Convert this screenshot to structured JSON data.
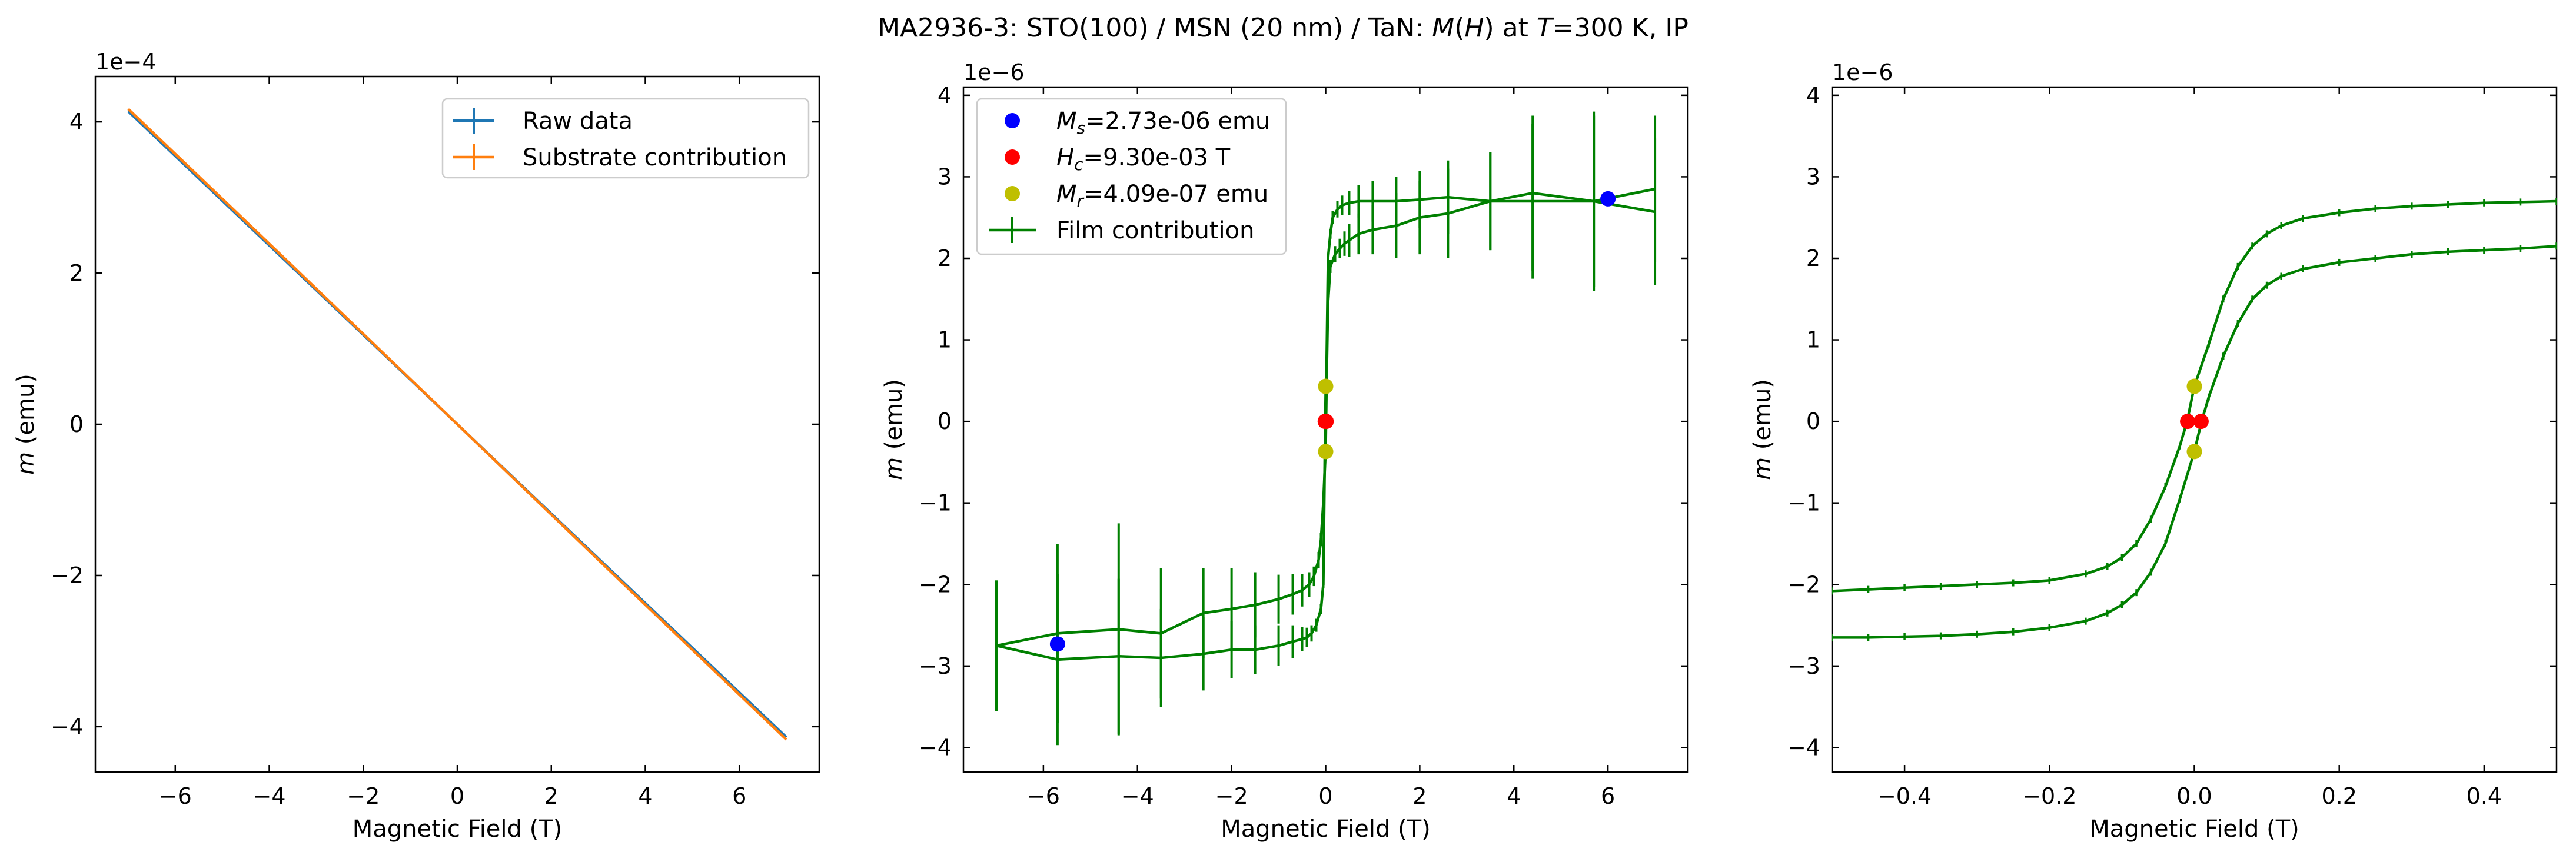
{
  "figure": {
    "title_parts": [
      "MA2936-3: STO(100)  / MSN (20 nm) / TaN: ",
      "M",
      "(",
      "H",
      ") at ",
      "T",
      "=300 K, IP"
    ]
  },
  "colors": {
    "raw": "#1f77b4",
    "substrate": "#ff7f0e",
    "film": "#008000",
    "ms_point": "#0000ff",
    "hc_point": "#ff0000",
    "mr_point": "#bfbf00"
  },
  "chart_data": [
    {
      "type": "line",
      "id": "raw-vs-substrate",
      "xlabel": "Magnetic Field (T)",
      "ylabel": "m (emu)",
      "offset_label": "1e−4",
      "xlim": [
        -7.7,
        7.7
      ],
      "ylim": [
        -4.6,
        4.6
      ],
      "xticks": [
        -6,
        -4,
        -2,
        0,
        2,
        4,
        6
      ],
      "yticks": [
        -4,
        -2,
        0,
        2,
        4
      ],
      "xtick_labels": [
        "−6",
        "−4",
        "−2",
        "0",
        "2",
        "4",
        "6"
      ],
      "ytick_labels": [
        "−4",
        "−2",
        "0",
        "2",
        "4"
      ],
      "legend_position": "top-right",
      "series": [
        {
          "name": "Raw data",
          "color_key": "raw",
          "x": [
            -7,
            -3.5,
            0,
            3.5,
            7
          ],
          "y": [
            4.14,
            2.07,
            0.0,
            -2.07,
            -4.14
          ]
        },
        {
          "name": "Substrate contribution",
          "color_key": "substrate",
          "x": [
            -7,
            -3.5,
            0,
            3.5,
            7
          ],
          "y": [
            4.17,
            2.09,
            0.0,
            -2.09,
            -4.17
          ]
        }
      ]
    },
    {
      "type": "line",
      "id": "film-full",
      "xlabel": "Magnetic Field (T)",
      "ylabel": "m (emu)",
      "offset_label": "1e−6",
      "xlim": [
        -7.7,
        7.7
      ],
      "ylim": [
        -4.3,
        4.1
      ],
      "xticks": [
        -6,
        -4,
        -2,
        0,
        2,
        4,
        6
      ],
      "yticks": [
        -4,
        -3,
        -2,
        -1,
        0,
        1,
        2,
        3,
        4
      ],
      "xtick_labels": [
        "−6",
        "−4",
        "−2",
        "0",
        "2",
        "4",
        "6"
      ],
      "ytick_labels": [
        "−4",
        "−3",
        "−2",
        "−1",
        "0",
        "1",
        "2",
        "3",
        "4"
      ],
      "legend_position": "top-left",
      "series": [
        {
          "name": "Film contribution",
          "color_key": "film",
          "x": [
            -7,
            -5.7,
            -4.4,
            -3.5,
            -2.6,
            -2.0,
            -1.5,
            -1.0,
            -0.7,
            -0.5,
            -0.35,
            -0.25,
            -0.15,
            -0.1,
            -0.05,
            -0.02,
            0,
            0.02,
            0.05,
            0.1,
            0.2,
            0.3,
            0.4,
            0.5,
            0.7,
            1.0,
            1.5,
            2.0,
            2.6,
            3.5,
            4.4,
            5.7,
            7
          ],
          "y": [
            -2.75,
            -2.6,
            -2.55,
            -2.6,
            -2.35,
            -2.3,
            -2.25,
            -2.18,
            -2.12,
            -2.07,
            -2.0,
            -1.9,
            -1.7,
            -1.45,
            -1.0,
            -0.6,
            -0.35,
            0.5,
            1.45,
            1.9,
            2.05,
            2.12,
            2.18,
            2.22,
            2.3,
            2.35,
            2.4,
            2.5,
            2.55,
            2.7,
            2.7,
            2.7,
            2.57
          ],
          "yerr": [
            0.8,
            1.1,
            1.3,
            0.8,
            0.55,
            0.5,
            0.4,
            0.3,
            0.25,
            0.2,
            0.15,
            0.12,
            0.1,
            0.08,
            0.05,
            0.04,
            0.04,
            0.04,
            0.05,
            0.08,
            0.1,
            0.12,
            0.15,
            0.2,
            0.25,
            0.3,
            0.4,
            0.45,
            0.55,
            0.6,
            0.95,
            1.1,
            0.9
          ]
        },
        {
          "name": "",
          "color_key": "film",
          "x": [
            7,
            5.7,
            4.4,
            3.5,
            2.6,
            2.0,
            1.5,
            1.0,
            0.7,
            0.5,
            0.35,
            0.25,
            0.15,
            0.1,
            0.05,
            0.02,
            0,
            -0.02,
            -0.05,
            -0.1,
            -0.2,
            -0.3,
            -0.4,
            -0.5,
            -0.7,
            -1.0,
            -1.5,
            -2.0,
            -2.6,
            -3.5,
            -4.4,
            -5.7,
            -7
          ],
          "y": [
            2.85,
            2.7,
            2.8,
            2.7,
            2.75,
            2.72,
            2.7,
            2.7,
            2.7,
            2.68,
            2.65,
            2.6,
            2.5,
            2.3,
            2.0,
            0.7,
            0.35,
            -0.5,
            -2.0,
            -2.3,
            -2.5,
            -2.6,
            -2.65,
            -2.67,
            -2.7,
            -2.75,
            -2.8,
            -2.8,
            -2.85,
            -2.9,
            -2.88,
            -2.92,
            -2.75
          ],
          "yerr": [
            0.9,
            1.05,
            0.95,
            0.6,
            0.45,
            0.35,
            0.3,
            0.25,
            0.2,
            0.15,
            0.12,
            0.1,
            0.08,
            0.06,
            0.04,
            0.04,
            0.04,
            0.04,
            0.04,
            0.06,
            0.08,
            0.1,
            0.12,
            0.15,
            0.2,
            0.25,
            0.3,
            0.35,
            0.45,
            0.6,
            0.95,
            1.05,
            0.8
          ]
        }
      ],
      "markers": [
        {
          "name": "M_s=2.73e-06 emu",
          "label_main": "M",
          "label_sub": "s",
          "label_rest": "=2.73e-06 emu",
          "color_key": "ms_point",
          "x": [
            -5.7,
            6.0
          ],
          "y": [
            -2.73,
            2.73
          ]
        },
        {
          "name": "H_c=9.30e-03 T",
          "label_main": "H",
          "label_sub": "c",
          "label_rest": "=9.30e-03 T",
          "color_key": "hc_point",
          "x": [
            -0.0093,
            0.0093
          ],
          "y": [
            0,
            0
          ]
        },
        {
          "name": "M_r=4.09e-07 emu",
          "label_main": "M",
          "label_sub": "r",
          "label_rest": "=4.09e-07 emu",
          "color_key": "mr_point",
          "x": [
            0,
            0
          ],
          "y": [
            0.43,
            -0.37
          ]
        }
      ]
    },
    {
      "type": "line",
      "id": "film-zoom",
      "xlabel": "Magnetic Field (T)",
      "ylabel": "m (emu)",
      "offset_label": "1e−6",
      "xlim": [
        -0.5,
        0.5
      ],
      "ylim": [
        -4.3,
        4.1
      ],
      "xticks": [
        -0.4,
        -0.2,
        0.0,
        0.2,
        0.4
      ],
      "yticks": [
        -4,
        -3,
        -2,
        -1,
        0,
        1,
        2,
        3,
        4
      ],
      "xtick_labels": [
        "−0.4",
        "−0.2",
        "0.0",
        "0.2",
        "0.4"
      ],
      "ytick_labels": [
        "−4",
        "−3",
        "−2",
        "−1",
        "0",
        "1",
        "2",
        "3",
        "4"
      ],
      "series": [
        {
          "name": "",
          "color_key": "film",
          "x": [
            -0.5,
            -0.45,
            -0.4,
            -0.35,
            -0.3,
            -0.25,
            -0.2,
            -0.15,
            -0.12,
            -0.1,
            -0.08,
            -0.06,
            -0.04,
            -0.02,
            0,
            0.01,
            0.02,
            0.04,
            0.06,
            0.08,
            0.1,
            0.12,
            0.15,
            0.2,
            0.25,
            0.3,
            0.35,
            0.4,
            0.45,
            0.5
          ],
          "y": [
            -2.65,
            -2.65,
            -2.64,
            -2.63,
            -2.61,
            -2.58,
            -2.53,
            -2.45,
            -2.35,
            -2.25,
            -2.1,
            -1.85,
            -1.5,
            -0.95,
            -0.37,
            0.0,
            0.3,
            0.8,
            1.2,
            1.5,
            1.67,
            1.78,
            1.87,
            1.95,
            2.0,
            2.05,
            2.08,
            2.1,
            2.12,
            2.15
          ]
        },
        {
          "name": "",
          "color_key": "film",
          "x": [
            0.5,
            0.45,
            0.4,
            0.35,
            0.3,
            0.25,
            0.2,
            0.15,
            0.12,
            0.1,
            0.08,
            0.06,
            0.04,
            0.02,
            0,
            -0.01,
            -0.02,
            -0.04,
            -0.06,
            -0.08,
            -0.1,
            -0.12,
            -0.15,
            -0.2,
            -0.25,
            -0.3,
            -0.35,
            -0.4,
            -0.45,
            -0.5
          ],
          "y": [
            2.7,
            2.69,
            2.68,
            2.66,
            2.64,
            2.61,
            2.56,
            2.49,
            2.4,
            2.3,
            2.15,
            1.9,
            1.5,
            0.95,
            0.43,
            0.0,
            -0.3,
            -0.8,
            -1.2,
            -1.5,
            -1.67,
            -1.78,
            -1.87,
            -1.95,
            -1.98,
            -2.0,
            -2.02,
            -2.04,
            -2.06,
            -2.08
          ]
        }
      ],
      "markers": [
        {
          "name": "H_c",
          "color_key": "hc_point",
          "x": [
            -0.0093,
            0.0093
          ],
          "y": [
            0,
            0
          ]
        },
        {
          "name": "M_r",
          "color_key": "mr_point",
          "x": [
            0,
            0
          ],
          "y": [
            0.43,
            -0.37
          ]
        }
      ]
    }
  ]
}
